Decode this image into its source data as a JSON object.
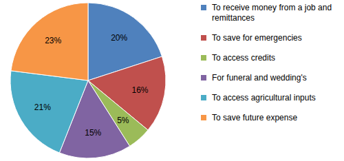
{
  "chart_data": {
    "type": "pie",
    "categories": [
      "To receive money from a job and remittances",
      "To save for emergencies",
      "To access credits",
      "For funeral and wedding's",
      "To access agricultural inputs",
      "To save future expense"
    ],
    "values": [
      20,
      16,
      5,
      15,
      21,
      23
    ],
    "value_labels": [
      "20%",
      "16%",
      "5%",
      "15%",
      "21%",
      "23%"
    ],
    "colors": [
      "#4f81bd",
      "#c0504d",
      "#9bbb59",
      "#8064a2",
      "#4bacc6",
      "#f79646"
    ],
    "data_labels": true,
    "legend": "right"
  }
}
